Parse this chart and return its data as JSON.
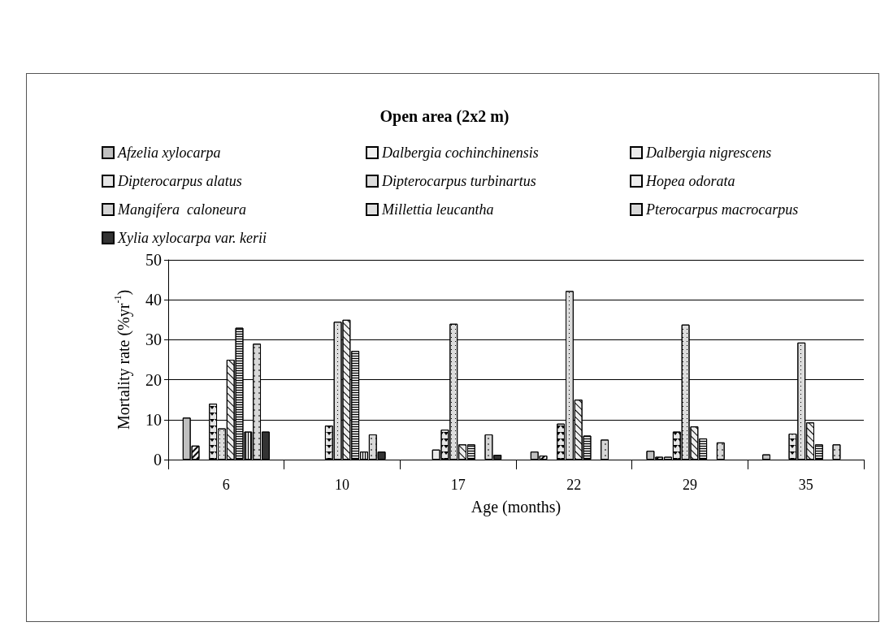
{
  "chart_data": {
    "type": "bar",
    "title": "Open area (2x2 m)",
    "xlabel": "Age (months)",
    "ylabel": "Mortality rate (%yr$^{-1}$)",
    "categories": [
      "6",
      "10",
      "17",
      "22",
      "29",
      "35"
    ],
    "series": [
      {
        "name": "Afzelia xylocarpa",
        "color": "#c0c0c0",
        "values": [
          10.5,
          0,
          0,
          2,
          2.2,
          1.3
        ]
      },
      {
        "name": "Dalbergia cochinchinensis",
        "color": "#f2f2f2",
        "values": [
          3.5,
          0,
          0,
          1,
          0.7,
          0
        ]
      },
      {
        "name": "Dalbergia nigrescens",
        "color": "#eaeaea",
        "values": [
          0,
          0,
          2.5,
          0,
          0.7,
          0
        ]
      },
      {
        "name": "Dipterocarpus alatus",
        "color": "#e6e6e6",
        "values": [
          14,
          8.5,
          7.5,
          9,
          7,
          6.5
        ]
      },
      {
        "name": "Dipterocarpus turbinartus",
        "color": "#dcdcdc",
        "values": [
          7.8,
          34.5,
          34,
          42.2,
          33.8,
          29.3
        ]
      },
      {
        "name": "Hopea odorata",
        "color": "#eeeeee",
        "values": [
          25,
          35,
          3.8,
          15,
          8.3,
          9.3
        ]
      },
      {
        "name": "Mangifera  caloneura",
        "color": "#d4d4d4",
        "values": [
          33,
          27.2,
          3.8,
          6,
          5.3,
          3.8
        ]
      },
      {
        "name": "Millettia leucantha",
        "color": "#e0e0e0",
        "values": [
          7,
          2,
          0,
          0,
          0,
          0
        ]
      },
      {
        "name": "Pterocarpus macrocarpus",
        "color": "#d8d8d8",
        "values": [
          29,
          6.3,
          6.3,
          5,
          4.3,
          3.8
        ]
      },
      {
        "name": "Xylia xylocarpa var. kerii",
        "color": "#333333",
        "values": [
          7,
          2,
          1.2,
          0,
          0,
          0
        ]
      }
    ],
    "ylim": [
      0,
      50
    ],
    "yticks": [
      0,
      10,
      20,
      30,
      40,
      50
    ],
    "grid": "y",
    "legend": "top"
  }
}
